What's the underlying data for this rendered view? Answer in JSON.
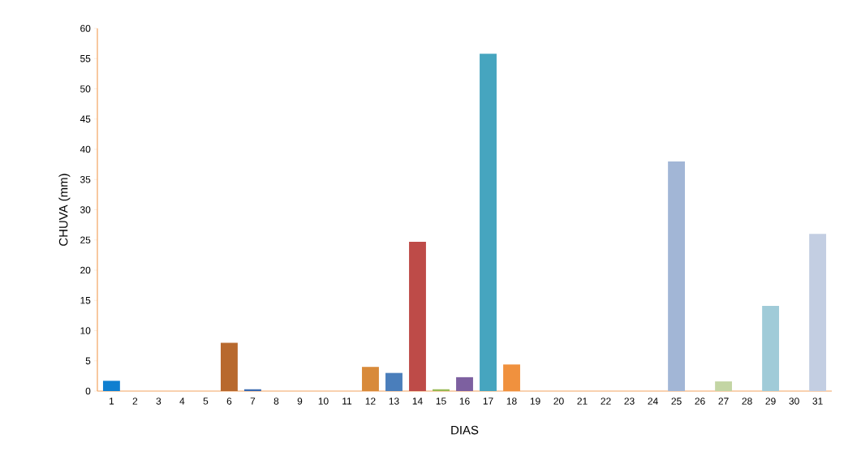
{
  "chart_data": {
    "type": "bar",
    "xlabel": "DIAS",
    "ylabel": "CHUVA  (mm)",
    "categories": [
      "1",
      "2",
      "3",
      "4",
      "5",
      "6",
      "7",
      "8",
      "9",
      "10",
      "11",
      "12",
      "13",
      "14",
      "15",
      "16",
      "17",
      "18",
      "19",
      "20",
      "21",
      "22",
      "23",
      "24",
      "25",
      "26",
      "27",
      "28",
      "29",
      "30",
      "31"
    ],
    "values": [
      1.7,
      0,
      0,
      0,
      0,
      8.0,
      0.3,
      0,
      0,
      0,
      0,
      4.0,
      3.0,
      24.7,
      0.3,
      2.3,
      55.8,
      4.4,
      0,
      0,
      0,
      0,
      0,
      0,
      38.0,
      0,
      1.6,
      0,
      14.1,
      0,
      26.0
    ],
    "colors": [
      "#0f7fd0",
      "#8b3a3a",
      "#6b8e3a",
      "#5e4a7a",
      "#2e8a9a",
      "#b8692e",
      "#3a6ab0",
      "#a33a3a",
      "#77933c",
      "#604a7b",
      "#31859c",
      "#d88a3a",
      "#4a7ebb",
      "#be4b48",
      "#98b954",
      "#7d60a0",
      "#46a5bf",
      "#f0913e",
      "#4f6fb0",
      "#a05a5a",
      "#8aa060",
      "#6a5a90",
      "#4a90a8",
      "#c88a5a",
      "#a2b6d6",
      "#b89090",
      "#c3d5a4",
      "#9d8fb5",
      "#a0cbd8",
      "#e0b090",
      "#c3cee2"
    ],
    "ylim": [
      0,
      60
    ],
    "yticks": [
      0,
      5,
      10,
      15,
      20,
      25,
      30,
      35,
      40,
      45,
      50,
      55,
      60
    ]
  }
}
